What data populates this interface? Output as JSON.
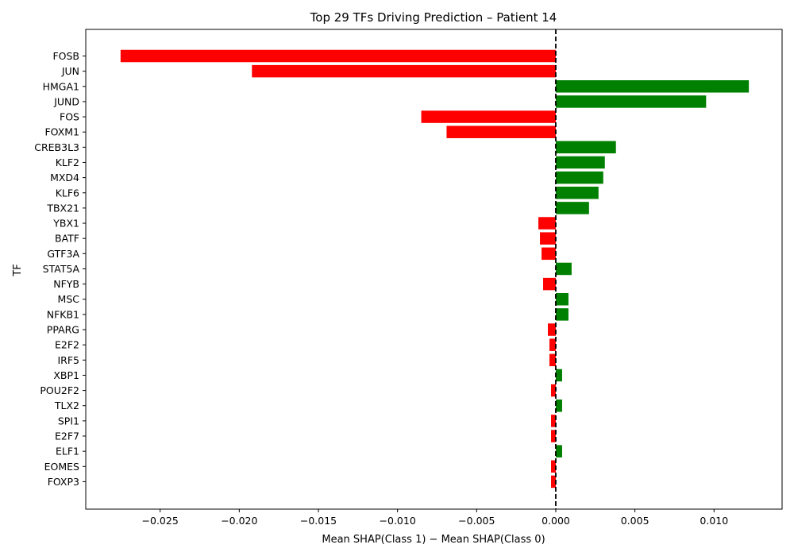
{
  "chart_data": {
    "type": "bar",
    "orientation": "horizontal",
    "title": "Top 29 TFs Driving Prediction – Patient 14",
    "xlabel": "Mean SHAP(Class 1) − Mean SHAP(Class 0)",
    "ylabel": "TF",
    "xlim": [
      -0.0297,
      0.0143
    ],
    "xticks": [
      -0.025,
      -0.02,
      -0.015,
      -0.01,
      -0.005,
      0.0,
      0.005,
      0.01
    ],
    "xtick_labels": [
      "−0.025",
      "−0.020",
      "−0.015",
      "−0.010",
      "−0.005",
      "0.000",
      "0.005",
      "0.010"
    ],
    "reference_line": {
      "x": 0,
      "style": "dashed",
      "color": "#000000"
    },
    "colors": {
      "positive": "#008000",
      "negative": "#ff0000"
    },
    "grid": false,
    "categories": [
      "FOSB",
      "JUN",
      "HMGA1",
      "JUND",
      "FOS",
      "FOXM1",
      "CREB3L3",
      "KLF2",
      "MXD4",
      "KLF6",
      "TBX21",
      "YBX1",
      "BATF",
      "GTF3A",
      "STAT5A",
      "NFYB",
      "MSC",
      "NFKB1",
      "PPARG",
      "E2F2",
      "IRF5",
      "XBP1",
      "POU2F2",
      "TLX2",
      "SPI1",
      "E2F7",
      "ELF1",
      "EOMES",
      "FOXP3"
    ],
    "values": [
      -0.0275,
      -0.0192,
      0.0122,
      0.0095,
      -0.0085,
      -0.0069,
      0.0038,
      0.0031,
      0.003,
      0.0027,
      0.0021,
      -0.0011,
      -0.001,
      -0.0009,
      0.001,
      -0.0008,
      0.0008,
      0.0008,
      -0.0005,
      -0.0004,
      -0.0004,
      0.0004,
      -0.0003,
      0.0004,
      -0.0003,
      -0.0003,
      0.0004,
      -0.0003,
      -0.0003
    ]
  }
}
